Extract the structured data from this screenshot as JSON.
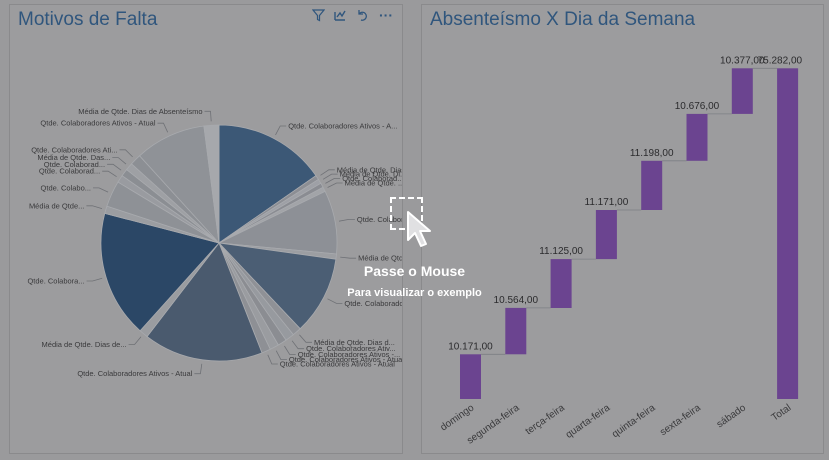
{
  "left_panel": {
    "title": "Motivos de Falta",
    "toolbar_icons": [
      "filter-icon",
      "focus-mode-icon",
      "undo-icon",
      "more-options-icon"
    ],
    "more_glyph": "···"
  },
  "right_panel": {
    "title": "Absenteísmo X Dia da Semana"
  },
  "overlay": {
    "title": "Passe o Mouse",
    "subtitle": "Para visualizar o exemplo"
  },
  "chart_data": [
    {
      "type": "pie",
      "title": "Motivos de Falta",
      "slices": [
        {
          "label": "Qtde. Colaboradores Ativos - A...",
          "value": 15.0,
          "color": "#3c5876"
        },
        {
          "label": "Média de Qtde. Dias ...",
          "value": 0.6,
          "color": "#8c8e94"
        },
        {
          "label": "Média de Qtde. Di...",
          "value": 0.6,
          "color": "#9ea0a6"
        },
        {
          "label": "Qtde. Colaborad...",
          "value": 0.6,
          "color": "#8a8c92"
        },
        {
          "label": "Média de Qtde. ...",
          "value": 0.6,
          "color": "#a2a4a8"
        },
        {
          "label": "Qtde. Colabor...",
          "value": 8.5,
          "color": "#8d9096"
        },
        {
          "label": "Média de Qtde. ...",
          "value": 0.7,
          "color": "#9c9ea2"
        },
        {
          "label": "Qtde. Colaborado...",
          "value": 10.5,
          "color": "#4b5e74"
        },
        {
          "label": "Média de Qtde. Dias d...",
          "value": 1.2,
          "color": "#8f9196"
        },
        {
          "label": "Qtde. Colaboradores Ativ...",
          "value": 1.2,
          "color": "#979a9f"
        },
        {
          "label": "Qtde. Colaboradores Ativos -...",
          "value": 1.2,
          "color": "#8b8d92"
        },
        {
          "label": "Qtde. Colaboradores Ativos - Atual",
          "value": 1.2,
          "color": "#9a9ca0"
        },
        {
          "label": "Qtde. Colaboradores Ativos - Atual",
          "value": 1.2,
          "color": "#8e9095"
        },
        {
          "label": "Qtde. Colaboradores Ativos - Atual",
          "value": 16.0,
          "color": "#4a5a6e"
        },
        {
          "label": "Média de Qtde. Dias de...",
          "value": 1.2,
          "color": "#9a9ca0"
        },
        {
          "label": "Qtde. Colabora...",
          "value": 17.0,
          "color": "#2b4766"
        },
        {
          "label": "Média de Qtde...",
          "value": 1.0,
          "color": "#9b9da1"
        },
        {
          "label": "Qtde. Colabo...",
          "value": 3.5,
          "color": "#8e9196"
        },
        {
          "label": "Qtde. Colaborad...",
          "value": 1.0,
          "color": "#999ba0"
        },
        {
          "label": "Qtde. Colaborad...",
          "value": 1.0,
          "color": "#8b8e93"
        },
        {
          "label": "Média de Qtde. Das...",
          "value": 1.0,
          "color": "#9ea0a4"
        },
        {
          "label": "Qtde. Colaboradores Ati...",
          "value": 1.5,
          "color": "#8c8f94"
        },
        {
          "label": "Qtde. Colaboradores Ativos - Atual",
          "value": 9.5,
          "color": "#8f9297"
        },
        {
          "label": "Média de Qtde. Dias de Absenteísmo",
          "value": 2.0,
          "color": "#a6a8ac"
        }
      ]
    },
    {
      "type": "waterfall",
      "title": "Absenteísmo X Dia da Semana",
      "categories": [
        "domingo",
        "segunda-feira",
        "terça-feira",
        "quarta-feira",
        "quinta-feira",
        "sexta-feira",
        "sábado",
        "Total"
      ],
      "increments": [
        10171,
        10564,
        11125,
        11171,
        11198,
        10676,
        10377,
        75282
      ],
      "data_labels": [
        "10.171,00",
        "10.564,00",
        "11.125,00",
        "11.171,00",
        "11.198,00",
        "10.676,00",
        "10.377,00",
        "75.282,00"
      ],
      "ylim": [
        0,
        76500
      ],
      "bar_color": "#6b4490"
    }
  ]
}
